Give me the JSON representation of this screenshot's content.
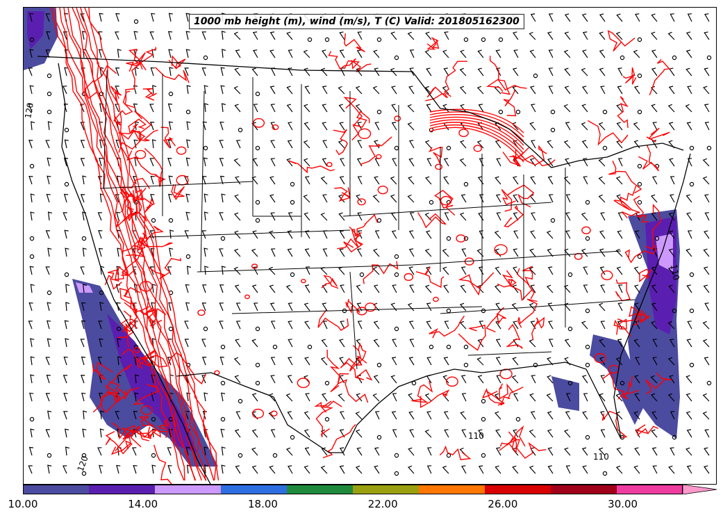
{
  "title": "1000 mb height (m), wind (m/s), T (C) Valid: 201805162300",
  "contour_labels": [
    "120",
    "110",
    "120",
    "110",
    "110"
  ],
  "colorbar": {
    "tick_labels": [
      "10.00",
      "14.00",
      "18.00",
      "22.00",
      "26.00",
      "30.00"
    ],
    "tick_values": [
      10,
      14,
      18,
      22,
      26,
      30
    ],
    "min": 10,
    "max": 32,
    "extend": "max",
    "colors": [
      "#4b4ba0",
      "#5a1fb0",
      "#cc99ff",
      "#2e6ee0",
      "#1f8a3c",
      "#9aa010",
      "#ff7700",
      "#d80000",
      "#a0001a",
      "#ee3c9f",
      "#ff99cc"
    ]
  },
  "colors": {
    "height_contour": "#ff0000",
    "boundaries": "#000000",
    "wind_barbs": "#000000"
  }
}
